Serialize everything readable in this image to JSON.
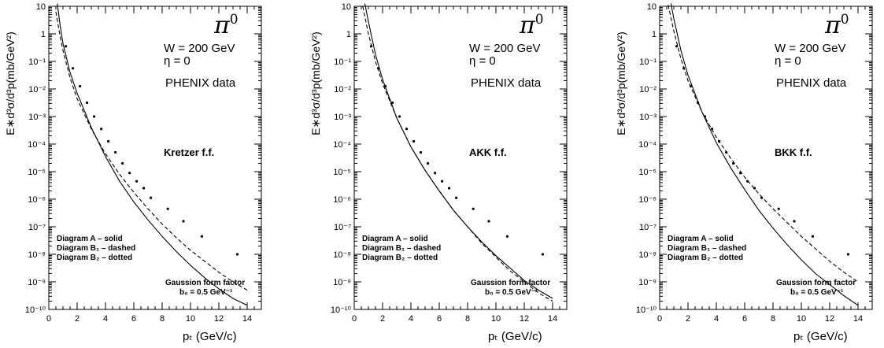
{
  "chart_data": [
    {
      "type": "line",
      "particle_label": "π",
      "particle_sup": "0",
      "energy_label": "W = 200 GeV",
      "eta_label": "η = 0",
      "data_label": "PHENIX data",
      "ff_label": "Kretzer f.f.",
      "legend": [
        "Diagram A – solid",
        "Diagram B₁ – dashed",
        "Diagram B₂ – dotted"
      ],
      "form_factor_label": "Gaussion form factor",
      "b0_label": "b₀ = 0.5 GeV⁻¹",
      "xlabel": "pₜ (GeV/c)",
      "ylabel": "E∗d³σ/d³p(mb/GeV²)",
      "xlim": [
        0,
        15
      ],
      "ylim_log10": [
        -10,
        1
      ],
      "y_log_scale": true,
      "xticks": [
        0,
        2,
        4,
        6,
        8,
        10,
        12,
        14
      ],
      "yticks": [
        "10",
        "1",
        "10⁻¹",
        "10⁻²",
        "10⁻³",
        "10⁻⁴",
        "10⁻⁵",
        "10⁻⁶",
        "10⁻⁷",
        "10⁻⁸",
        "10⁻⁹",
        "10⁻¹⁰"
      ],
      "series": [
        {
          "name": "Diagram A",
          "style": "solid",
          "x": [
            0.6,
            0.8,
            1,
            1.5,
            2,
            3,
            4,
            5,
            6,
            7,
            8,
            9,
            10,
            11,
            12,
            13,
            14
          ],
          "log10y": [
            1.1,
            0.3,
            -0.35,
            -1.4,
            -2.15,
            -3.4,
            -4.45,
            -5.35,
            -6.1,
            -6.75,
            -7.35,
            -7.9,
            -8.4,
            -8.85,
            -9.25,
            -9.6,
            -9.85
          ]
        },
        {
          "name": "Diagram B1",
          "style": "dashed",
          "x": [
            0.5,
            0.8,
            1,
            1.5,
            2,
            3,
            4,
            5,
            6,
            7,
            8,
            9,
            10,
            11,
            12,
            13,
            14
          ],
          "log10y": [
            0.8,
            -0.1,
            -0.6,
            -1.6,
            -2.35,
            -3.45,
            -4.35,
            -5.1,
            -5.75,
            -6.35,
            -6.9,
            -7.4,
            -7.85,
            -8.25,
            -8.65,
            -9.0,
            -9.3
          ]
        },
        {
          "name": "PHENIX data",
          "style": "points",
          "x": [
            1.2,
            1.7,
            2.2,
            2.7,
            3.2,
            3.7,
            4.2,
            4.7,
            5.2,
            5.7,
            6.2,
            6.7,
            7.2,
            8.4,
            9.5,
            10.8,
            13.3
          ],
          "log10y": [
            -0.45,
            -1.25,
            -1.9,
            -2.5,
            -3.0,
            -3.45,
            -3.9,
            -4.3,
            -4.7,
            -5.05,
            -5.35,
            -5.6,
            -5.95,
            -6.35,
            -6.8,
            -7.35,
            -8.0
          ]
        }
      ]
    },
    {
      "type": "line",
      "particle_label": "π",
      "particle_sup": "0",
      "energy_label": "W = 200 GeV",
      "eta_label": "η = 0",
      "data_label": "PHENIX data",
      "ff_label": "AKK f.f.",
      "legend": [
        "Diagram A – solid",
        "Diagram B₁ – dashed",
        "Diagram B₂ – dotted"
      ],
      "form_factor_label": "Gaussion form factor",
      "b0_label": "b₀ = 0.5 GeV⁻¹",
      "xlabel": "pₜ (GeV/c)",
      "ylabel": "E∗d³σ/d³p(mb/GeV²)",
      "xlim": [
        0,
        15
      ],
      "ylim_log10": [
        -10,
        1
      ],
      "y_log_scale": true,
      "xticks": [
        0,
        2,
        4,
        6,
        8,
        10,
        12,
        14
      ],
      "yticks": [
        "10",
        "1",
        "10⁻¹",
        "10⁻²",
        "10⁻³",
        "10⁻⁴",
        "10⁻⁵",
        "10⁻⁶",
        "10⁻⁷",
        "10⁻⁸",
        "10⁻⁹",
        "10⁻¹⁰"
      ],
      "series": [
        {
          "name": "Diagram A",
          "style": "solid",
          "x": [
            0.75,
            1,
            1.5,
            2,
            3,
            4,
            5,
            6,
            7,
            8,
            9,
            10,
            11,
            12,
            13,
            14
          ],
          "log10y": [
            1.1,
            0.45,
            -0.75,
            -1.65,
            -3.05,
            -4.1,
            -4.95,
            -5.7,
            -6.4,
            -7.0,
            -7.55,
            -8.05,
            -8.5,
            -8.95,
            -9.3,
            -9.6
          ]
        },
        {
          "name": "Diagram B1",
          "style": "dashed",
          "x": [
            0.6,
            1,
            1.5,
            2,
            3,
            4,
            5,
            6,
            7,
            8,
            9,
            10,
            11,
            12,
            13,
            14
          ],
          "log10y": [
            1.0,
            0.0,
            -1.0,
            -1.8,
            -3.05,
            -4.1,
            -4.95,
            -5.7,
            -6.4,
            -7.0,
            -7.6,
            -8.1,
            -8.6,
            -9.0,
            -9.4,
            -9.7
          ]
        },
        {
          "name": "PHENIX data",
          "style": "points",
          "x": [
            1.2,
            1.7,
            2.2,
            2.7,
            3.2,
            3.7,
            4.2,
            4.7,
            5.2,
            5.7,
            6.2,
            6.7,
            7.2,
            8.4,
            9.5,
            10.8,
            13.3
          ],
          "log10y": [
            -0.45,
            -1.25,
            -1.9,
            -2.5,
            -3.0,
            -3.45,
            -3.9,
            -4.3,
            -4.7,
            -5.05,
            -5.35,
            -5.6,
            -5.95,
            -6.35,
            -6.8,
            -7.35,
            -8.0
          ]
        }
      ]
    },
    {
      "type": "line",
      "particle_label": "π",
      "particle_sup": "0",
      "energy_label": "W = 200 GeV",
      "eta_label": "η = 0",
      "data_label": "PHENIX data",
      "ff_label": "BKK f.f.",
      "legend": [
        "Diagram A – solid",
        "Diagram B₁ – dashed",
        "Diagram B₂ – dotted"
      ],
      "form_factor_label": "Gaussion form factor",
      "b0_label": "b₀ = 0.5 GeV⁻¹",
      "xlabel": "pₜ (GeV/c)",
      "ylabel": "E∗d³σ/d³p(mb/GeV²)",
      "xlim": [
        0,
        15
      ],
      "ylim_log10": [
        -10,
        1
      ],
      "y_log_scale": true,
      "xticks": [
        0,
        2,
        4,
        6,
        8,
        10,
        12,
        14
      ],
      "yticks": [
        "10",
        "1",
        "10⁻¹",
        "10⁻²",
        "10⁻³",
        "10⁻⁴",
        "10⁻⁵",
        "10⁻⁶",
        "10⁻⁷",
        "10⁻⁸",
        "10⁻⁹",
        "10⁻¹⁰"
      ],
      "series": [
        {
          "name": "Diagram A",
          "style": "solid",
          "x": [
            0.8,
            1,
            1.5,
            2,
            3,
            4,
            5,
            6,
            7,
            8,
            9,
            10,
            11,
            12,
            13,
            14
          ],
          "log10y": [
            1.1,
            0.55,
            -0.6,
            -1.5,
            -2.85,
            -3.95,
            -4.85,
            -5.65,
            -6.4,
            -7.05,
            -7.65,
            -8.2,
            -8.7,
            -9.1,
            -9.5,
            -9.85
          ]
        },
        {
          "name": "Diagram B1",
          "style": "dashed",
          "x": [
            0.6,
            1,
            1.5,
            2,
            3,
            4,
            5,
            6,
            7,
            8,
            9,
            10,
            11,
            12,
            13,
            14
          ],
          "log10y": [
            1.05,
            0.1,
            -0.9,
            -1.7,
            -2.85,
            -3.75,
            -4.5,
            -5.2,
            -5.8,
            -6.35,
            -6.85,
            -7.35,
            -7.8,
            -8.25,
            -8.65,
            -9.0
          ]
        },
        {
          "name": "PHENIX data",
          "style": "points",
          "x": [
            1.2,
            1.7,
            2.2,
            2.7,
            3.2,
            3.7,
            4.2,
            4.7,
            5.2,
            5.7,
            6.2,
            6.7,
            7.2,
            8.4,
            9.5,
            10.8,
            13.3
          ],
          "log10y": [
            -0.45,
            -1.25,
            -1.9,
            -2.5,
            -3.0,
            -3.45,
            -3.9,
            -4.3,
            -4.7,
            -5.05,
            -5.35,
            -5.6,
            -5.95,
            -6.35,
            -6.8,
            -7.35,
            -8.0
          ]
        }
      ]
    }
  ]
}
